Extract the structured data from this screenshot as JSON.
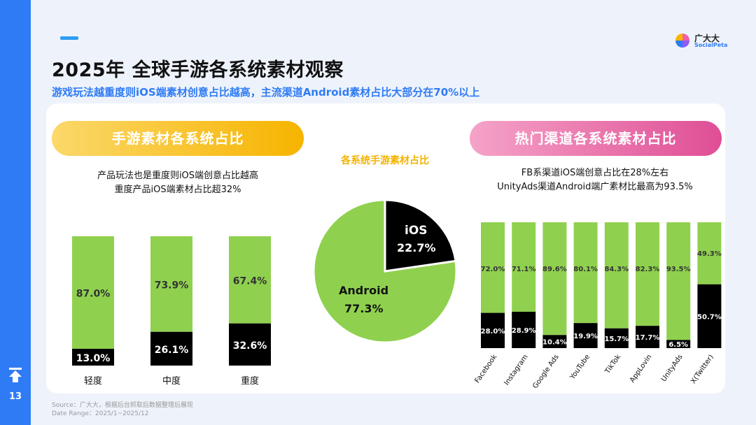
{
  "page": {
    "title": "2025年 全球手游各系统素材观察",
    "subtitle": "游戏玩法越重度则iOS端素材创意占比越高，主流渠道Android素材占比大部分在70%以上",
    "page_number": "13",
    "logo": {
      "cn": "广大大",
      "en": "SocialPeta"
    },
    "source_line1": "Source：广大大，根据后台抓取后数据整理后展现",
    "source_line2": "Date Range：2025/1~2025/12"
  },
  "left_panel": {
    "header": "手游素材各系统占比",
    "note_line1": "产品玩法也是重度则iOS端创意占比越高",
    "note_line2": "重度产品iOS端素材占比超32%"
  },
  "middle_panel": {
    "header": "各系统手游素材占比"
  },
  "right_panel": {
    "header": "热门渠道各系统素材占比",
    "note_line1": "FB系渠道iOS端创意占比在28%左右",
    "note_line2": "UnityAds渠道Android端广素材比最高为93.5%"
  },
  "colors": {
    "android": "#8fd14f",
    "ios": "#000000",
    "sidebar": "#2f7bf5",
    "yellow": "#f7b400",
    "pink": "#df4e95"
  },
  "chart_data": [
    {
      "type": "bar",
      "stacked": true,
      "categories": [
        "轻度",
        "中度",
        "重度"
      ],
      "series": [
        {
          "values": [
            87.0,
            73.9,
            67.4
          ],
          "labels": [
            "87.0%",
            "73.9%",
            "67.4%"
          ]
        },
        {
          "values": [
            13.0,
            26.1,
            32.6
          ],
          "labels": [
            "13.0%",
            "26.1%",
            "32.6%"
          ]
        }
      ]
    },
    {
      "type": "pie",
      "slices": [
        {
          "name": "iOS",
          "value": 22.7,
          "label": "22.7%"
        },
        {
          "name": "Android",
          "value": 77.3,
          "label": "77.3%"
        }
      ]
    },
    {
      "type": "bar",
      "stacked": true,
      "categories": [
        "Facebook",
        "Instagram",
        "Google Ads",
        "YouTube",
        "TikTok",
        "AppLovin",
        "UnityAds",
        "X(Twitter)"
      ],
      "series": [
        {
          "values": [
            72.0,
            71.1,
            89.6,
            80.1,
            84.3,
            82.3,
            93.5,
            49.3
          ],
          "labels": [
            "72.0%",
            "71.1%",
            "89.6%",
            "80.1%",
            "84.3%",
            "82.3%",
            "93.5%",
            "49.3%"
          ]
        },
        {
          "values": [
            28.0,
            28.9,
            10.4,
            19.9,
            15.7,
            17.7,
            6.5,
            50.7
          ],
          "labels": [
            "28.0%",
            "28.9%",
            "10.4%",
            "19.9%",
            "15.7%",
            "17.7%",
            "6.5%",
            "50.7%"
          ]
        }
      ]
    }
  ]
}
